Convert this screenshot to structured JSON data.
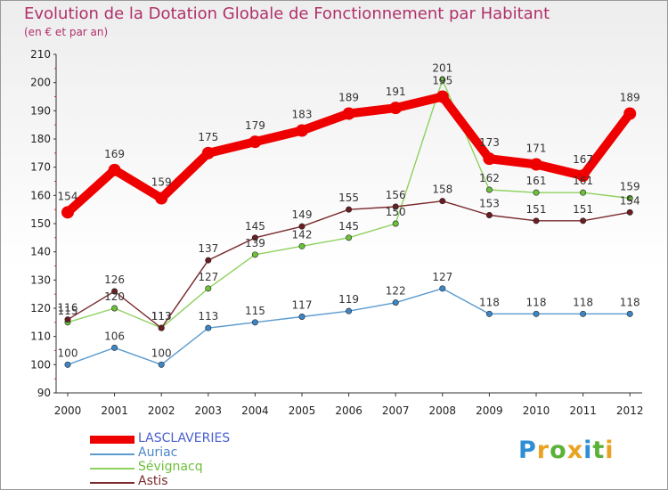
{
  "header": {
    "title": "Evolution de la Dotation Globale de Fonctionnement par Habitant",
    "subtitle": "(en € et par an)"
  },
  "logo": {
    "letters": [
      {
        "char": "P",
        "color": "#2f8fd4"
      },
      {
        "char": "r",
        "color": "#e9a321"
      },
      {
        "char": "o",
        "color": "#5ab237"
      },
      {
        "char": "x",
        "color": "#e9a321"
      },
      {
        "char": "i",
        "color": "#2f8fd4"
      },
      {
        "char": "t",
        "color": "#5ab237"
      },
      {
        "char": "i",
        "color": "#e9a321"
      }
    ]
  },
  "chart_data": {
    "type": "line",
    "title": "Evolution de la Dotation Globale de Fonctionnement par Habitant",
    "subtitle": "(en € et par an)",
    "xlabel": "",
    "ylabel": "",
    "categories": [
      "2000",
      "2001",
      "2002",
      "2003",
      "2004",
      "2005",
      "2006",
      "2007",
      "2008",
      "2009",
      "2010",
      "2011",
      "2012"
    ],
    "ylim": [
      90,
      210
    ],
    "yticks": [
      90,
      100,
      110,
      120,
      130,
      140,
      150,
      160,
      170,
      180,
      190,
      200,
      210
    ],
    "grid": false,
    "legend": "bottom-left",
    "series": [
      {
        "name": "Auriac",
        "color": "#5b9bd0",
        "dot": "#3d86c6",
        "values": [
          100,
          106,
          100,
          113,
          115,
          117,
          119,
          122,
          127,
          118,
          118,
          118,
          118
        ],
        "labels": [
          "100",
          "106",
          "100",
          "113",
          "115",
          "117",
          "119",
          "122",
          "127",
          "118",
          "118",
          "118",
          "118"
        ]
      },
      {
        "name": "Sévignacq",
        "color": "#8ed15f",
        "dot": "#6cc03a",
        "values": [
          115,
          120,
          113,
          127,
          139,
          142,
          145,
          150,
          201,
          162,
          161,
          161,
          159
        ],
        "labels": [
          "115",
          "120",
          "113",
          "127",
          "139",
          "142",
          "145",
          "150",
          "201",
          "162",
          "161",
          "161",
          "159"
        ]
      },
      {
        "name": "Astis",
        "color": "#7a2a2e",
        "dot": "#6b1e22",
        "values": [
          116,
          126,
          113,
          137,
          145,
          149,
          155,
          156,
          158,
          153,
          151,
          151,
          154
        ],
        "labels": [
          "116",
          "126",
          "113",
          "137",
          "145",
          "149",
          "155",
          "156",
          "158",
          "153",
          "151",
          "151",
          "154"
        ]
      },
      {
        "name": "LASCLAVERIES",
        "color": "#ee0000",
        "dot": "#ee0000",
        "thick": true,
        "values": [
          154,
          169,
          159,
          175,
          179,
          183,
          189,
          191,
          195,
          173,
          171,
          167,
          189
        ],
        "labels": [
          "154",
          "169",
          "159",
          "175",
          "179",
          "183",
          "189",
          "191",
          "195",
          "173",
          "171",
          "167",
          "189"
        ]
      }
    ],
    "legend_order": [
      "LASCLAVERIES",
      "Auriac",
      "Sévignacq",
      "Astis"
    ]
  }
}
